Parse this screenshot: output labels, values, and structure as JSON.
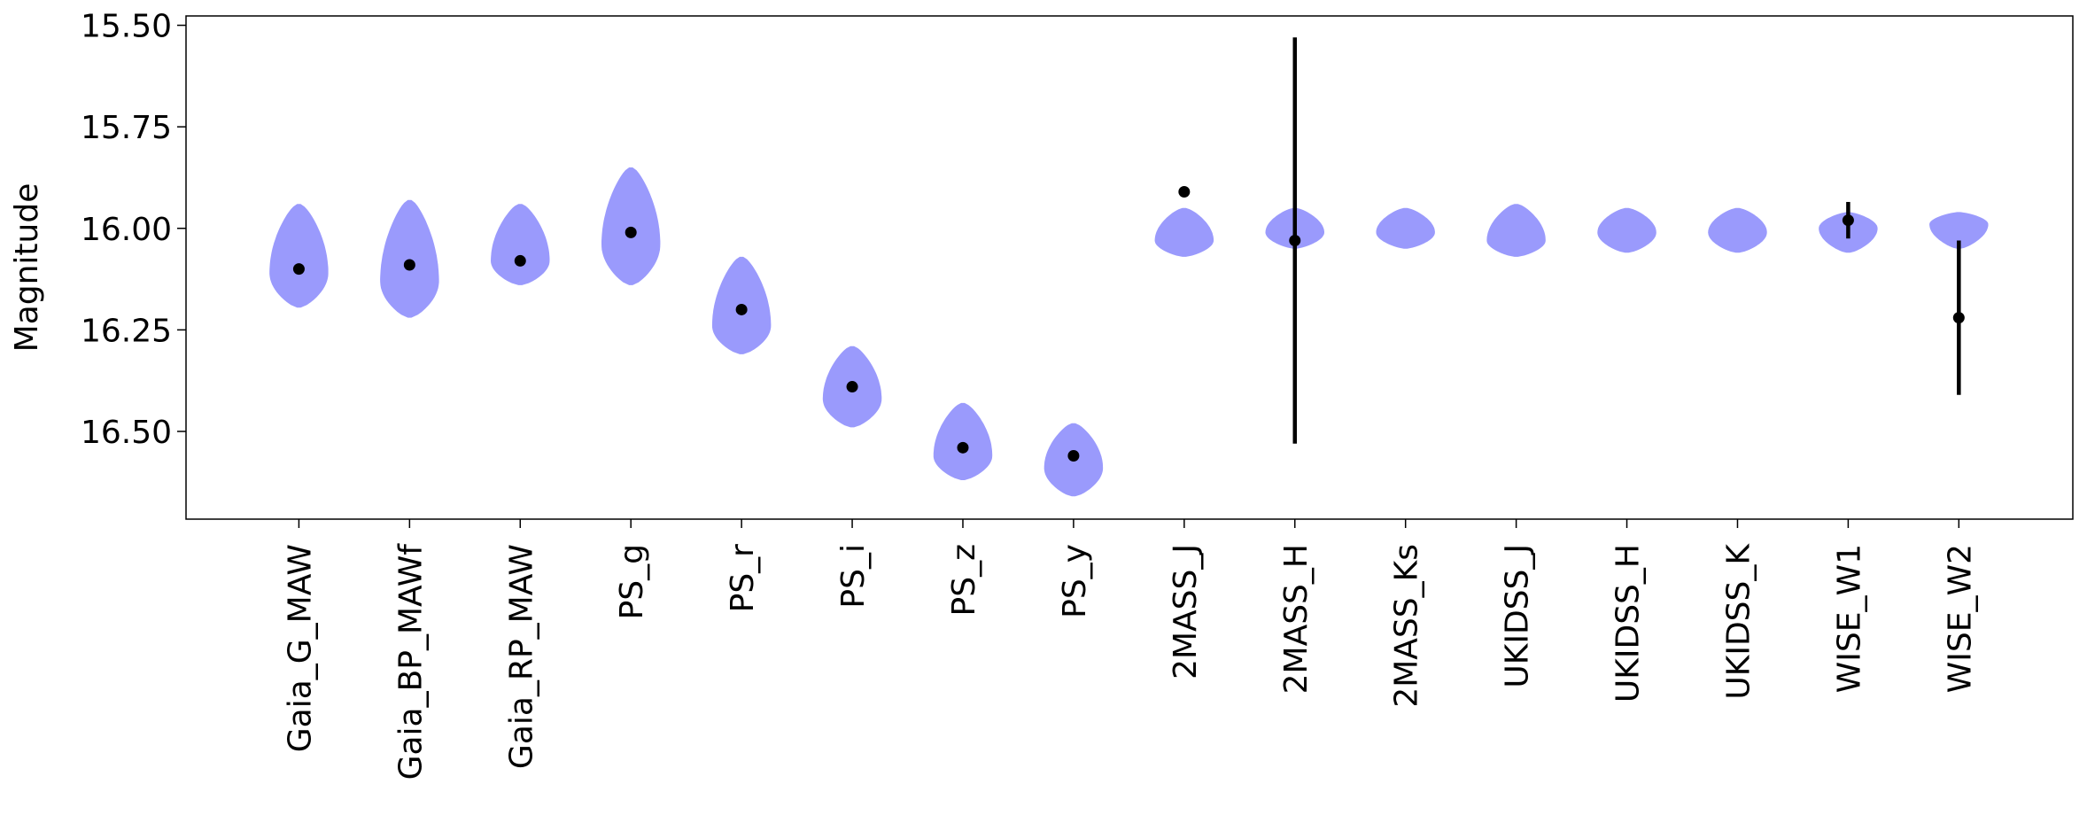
{
  "chart_data": {
    "type": "violin",
    "ylabel": "Magnitude",
    "categories": [
      "Gaia_G_MAW",
      "Gaia_BP_MAWf",
      "Gaia_RP_MAW",
      "PS_g",
      "PS_r",
      "PS_i",
      "PS_z",
      "PS_y",
      "2MASS_J",
      "2MASS_H",
      "2MASS_Ks",
      "UKIDSS_J",
      "UKIDSS_H",
      "UKIDSS_K",
      "WISE_W1",
      "WISE_W2"
    ],
    "violin_min": [
      15.94,
      15.93,
      15.94,
      15.85,
      16.07,
      16.29,
      16.43,
      16.48,
      15.95,
      15.95,
      15.95,
      15.94,
      15.95,
      15.95,
      15.96,
      15.96
    ],
    "violin_mode": [
      16.11,
      16.13,
      16.08,
      16.04,
      16.24,
      16.42,
      16.56,
      16.59,
      16.03,
      16.01,
      16.01,
      16.03,
      16.01,
      16.01,
      16.0,
      15.99
    ],
    "violin_max": [
      16.195,
      16.22,
      16.14,
      16.14,
      16.31,
      16.49,
      16.62,
      16.66,
      16.07,
      16.05,
      16.05,
      16.07,
      16.06,
      16.06,
      16.06,
      16.05
    ],
    "violin_color": "#9a9afc",
    "values": [
      16.1,
      16.09,
      16.08,
      16.01,
      16.2,
      16.39,
      16.54,
      16.56,
      15.91,
      16.03,
      null,
      null,
      null,
      null,
      15.98,
      16.22
    ],
    "errors": [
      0.01,
      0.01,
      0.01,
      0.01,
      0.01,
      0.01,
      0.01,
      0.01,
      0.01,
      0.5,
      null,
      null,
      null,
      null,
      0.045,
      0.19
    ],
    "point_color": "#000000",
    "ylim": [
      15.477,
      16.716
    ],
    "invert_y": true,
    "yticks": [
      {
        "value": 15.5,
        "label": "15.50"
      },
      {
        "value": 15.75,
        "label": "15.75"
      },
      {
        "value": 16.0,
        "label": "16.00"
      },
      {
        "value": 16.25,
        "label": "16.25"
      },
      {
        "value": 16.5,
        "label": "16.50"
      }
    ]
  }
}
